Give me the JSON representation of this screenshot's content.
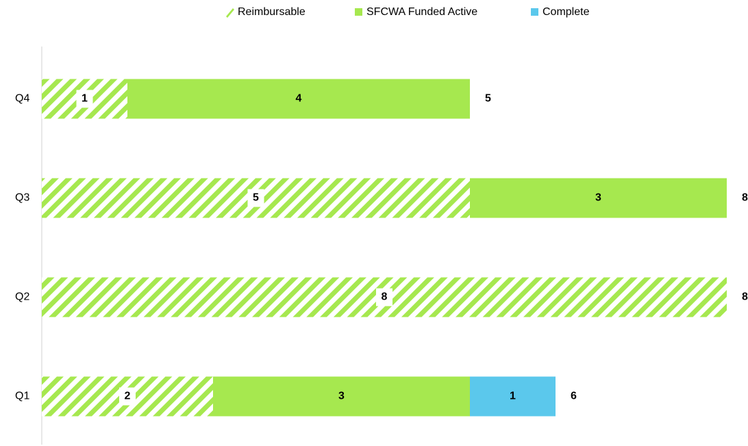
{
  "chart_data": {
    "type": "stacked-bar-horizontal",
    "categories": [
      "Q1",
      "Q2",
      "Q3",
      "Q4"
    ],
    "series": [
      {
        "name": "Reimbursable",
        "color": "#a6e84f",
        "hatched": true,
        "values": [
          2,
          8,
          5,
          1
        ]
      },
      {
        "name": "SFCWA Funded Active",
        "color": "#a6e84f",
        "hatched": false,
        "values": [
          3,
          null,
          3,
          4
        ]
      },
      {
        "name": "Complete",
        "color": "#5bc8ec",
        "hatched": false,
        "values": [
          1,
          null,
          null,
          null
        ]
      }
    ],
    "totals": [
      6,
      8,
      8,
      5
    ],
    "xlim": [
      0,
      8
    ],
    "legend": "top"
  }
}
